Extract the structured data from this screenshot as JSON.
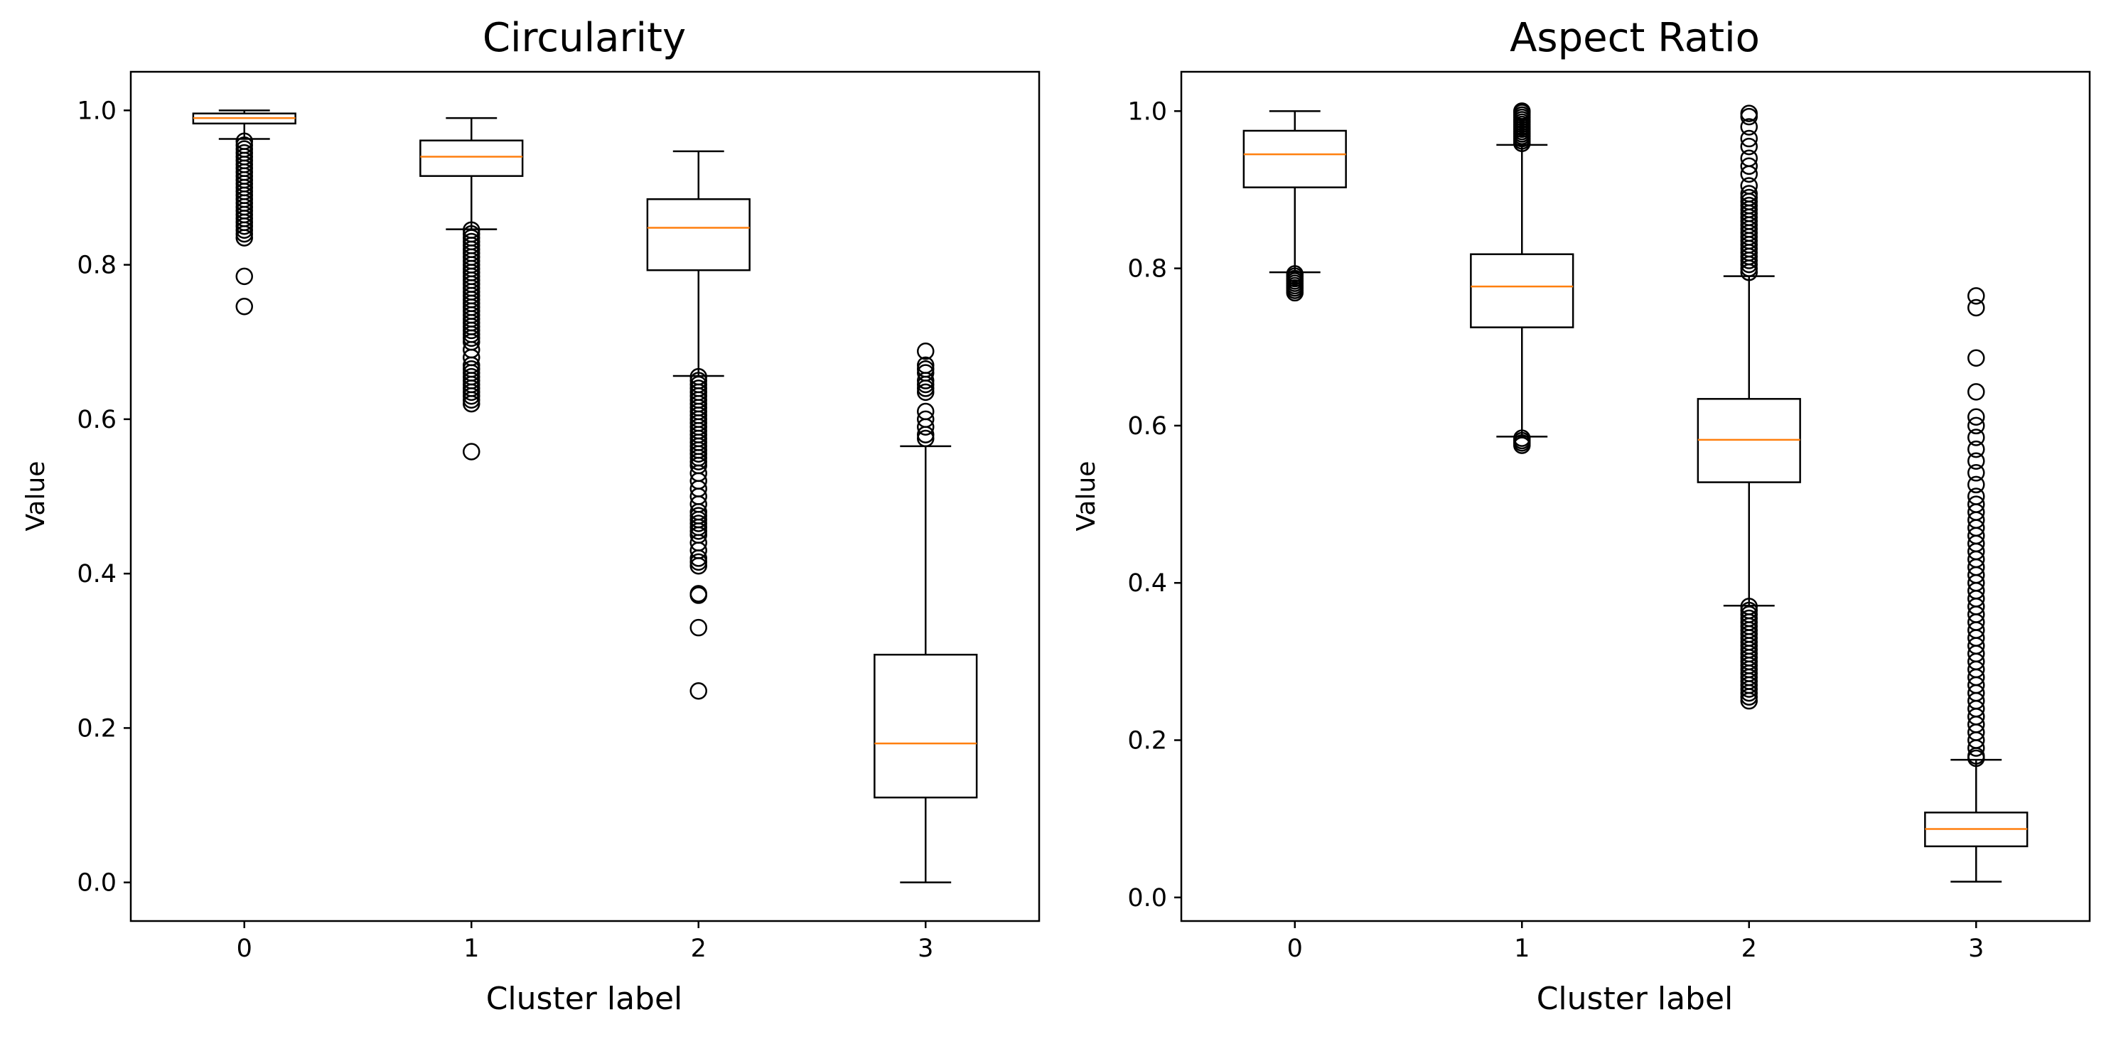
{
  "chart_data": [
    {
      "type": "box",
      "title": "Circularity",
      "xlabel": "Cluster label",
      "ylabel": "Value",
      "ylim": [
        -0.05,
        1.05
      ],
      "categories": [
        "0",
        "1",
        "2",
        "3"
      ],
      "yticks": [
        0.0,
        0.2,
        0.4,
        0.6,
        0.8,
        1.0
      ],
      "ytick_labels": [
        "0.0",
        "0.2",
        "0.4",
        "0.6",
        "0.8",
        "1.0"
      ],
      "boxes": [
        {
          "label": "0",
          "whisker_low": 0.963,
          "q1": 0.983,
          "median": 0.99,
          "q3": 0.996,
          "whisker_high": 1.0,
          "outliers": [
            0.96,
            0.955,
            0.95,
            0.945,
            0.94,
            0.935,
            0.93,
            0.925,
            0.92,
            0.915,
            0.91,
            0.905,
            0.9,
            0.895,
            0.89,
            0.885,
            0.88,
            0.875,
            0.87,
            0.865,
            0.86,
            0.855,
            0.85,
            0.845,
            0.84,
            0.835,
            0.785,
            0.746
          ]
        },
        {
          "label": "1",
          "whisker_low": 0.846,
          "q1": 0.915,
          "median": 0.94,
          "q3": 0.961,
          "whisker_high": 0.99,
          "outliers": [
            0.845,
            0.84,
            0.835,
            0.83,
            0.825,
            0.82,
            0.815,
            0.81,
            0.805,
            0.8,
            0.795,
            0.79,
            0.785,
            0.78,
            0.775,
            0.77,
            0.765,
            0.76,
            0.755,
            0.75,
            0.745,
            0.74,
            0.735,
            0.73,
            0.725,
            0.72,
            0.715,
            0.71,
            0.705,
            0.7,
            0.69,
            0.68,
            0.67,
            0.665,
            0.66,
            0.655,
            0.65,
            0.645,
            0.64,
            0.635,
            0.63,
            0.625,
            0.62,
            0.558
          ]
        },
        {
          "label": "2",
          "whisker_low": 0.656,
          "q1": 0.793,
          "median": 0.848,
          "q3": 0.885,
          "whisker_high": 0.947,
          "outliers": [
            0.655,
            0.65,
            0.645,
            0.64,
            0.635,
            0.63,
            0.625,
            0.62,
            0.615,
            0.61,
            0.605,
            0.6,
            0.595,
            0.59,
            0.585,
            0.58,
            0.575,
            0.57,
            0.565,
            0.56,
            0.555,
            0.55,
            0.545,
            0.54,
            0.53,
            0.52,
            0.51,
            0.5,
            0.49,
            0.48,
            0.475,
            0.47,
            0.465,
            0.46,
            0.455,
            0.45,
            0.44,
            0.43,
            0.42,
            0.415,
            0.41,
            0.374,
            0.372,
            0.33,
            0.248
          ]
        },
        {
          "label": "3",
          "whisker_low": 0.0,
          "q1": 0.11,
          "median": 0.18,
          "q3": 0.295,
          "whisker_high": 0.565,
          "outliers": [
            0.575,
            0.58,
            0.59,
            0.6,
            0.61,
            0.635,
            0.64,
            0.645,
            0.65,
            0.66,
            0.665,
            0.67,
            0.688
          ]
        }
      ]
    },
    {
      "type": "box",
      "title": "Aspect Ratio",
      "xlabel": "Cluster label",
      "ylabel": "Value",
      "ylim": [
        -0.03,
        1.05
      ],
      "categories": [
        "0",
        "1",
        "2",
        "3"
      ],
      "yticks": [
        0.0,
        0.2,
        0.4,
        0.6,
        0.8,
        1.0
      ],
      "ytick_labels": [
        "0.0",
        "0.2",
        "0.4",
        "0.6",
        "0.8",
        "1.0"
      ],
      "boxes": [
        {
          "label": "0",
          "whisker_low": 0.795,
          "q1": 0.903,
          "median": 0.945,
          "q3": 0.975,
          "whisker_high": 1.0,
          "outliers": [
            0.793,
            0.79,
            0.787,
            0.784,
            0.781,
            0.778,
            0.775,
            0.772,
            0.769
          ]
        },
        {
          "label": "1",
          "whisker_low": 0.586,
          "q1": 0.725,
          "median": 0.777,
          "q3": 0.818,
          "whisker_high": 0.957,
          "outliers": [
            1.0,
            0.998,
            0.995,
            0.992,
            0.989,
            0.986,
            0.983,
            0.98,
            0.977,
            0.974,
            0.971,
            0.968,
            0.965,
            0.962,
            0.959,
            0.584,
            0.581,
            0.578,
            0.575
          ]
        },
        {
          "label": "2",
          "whisker_low": 0.371,
          "q1": 0.528,
          "median": 0.582,
          "q3": 0.634,
          "whisker_high": 0.79,
          "outliers": [
            0.997,
            0.993,
            0.98,
            0.965,
            0.955,
            0.94,
            0.93,
            0.92,
            0.905,
            0.895,
            0.89,
            0.885,
            0.88,
            0.875,
            0.87,
            0.865,
            0.86,
            0.855,
            0.85,
            0.845,
            0.84,
            0.835,
            0.83,
            0.825,
            0.82,
            0.815,
            0.81,
            0.805,
            0.8,
            0.795,
            0.37,
            0.365,
            0.36,
            0.355,
            0.35,
            0.345,
            0.34,
            0.335,
            0.33,
            0.325,
            0.32,
            0.315,
            0.31,
            0.305,
            0.3,
            0.295,
            0.29,
            0.285,
            0.28,
            0.275,
            0.27,
            0.265,
            0.26,
            0.255,
            0.25
          ]
        },
        {
          "label": "3",
          "whisker_low": 0.02,
          "q1": 0.065,
          "median": 0.087,
          "q3": 0.108,
          "whisker_high": 0.175,
          "outliers": [
            0.765,
            0.75,
            0.686,
            0.643,
            0.611,
            0.6,
            0.585,
            0.57,
            0.555,
            0.54,
            0.525,
            0.51,
            0.5,
            0.49,
            0.48,
            0.47,
            0.46,
            0.45,
            0.44,
            0.43,
            0.42,
            0.41,
            0.4,
            0.39,
            0.38,
            0.37,
            0.36,
            0.35,
            0.34,
            0.33,
            0.32,
            0.31,
            0.3,
            0.29,
            0.28,
            0.27,
            0.26,
            0.25,
            0.24,
            0.23,
            0.22,
            0.21,
            0.2,
            0.19,
            0.18,
            0.177
          ]
        }
      ]
    }
  ],
  "colors": {
    "box": "#000000",
    "median": "#ff7f0e",
    "background": "#ffffff"
  }
}
